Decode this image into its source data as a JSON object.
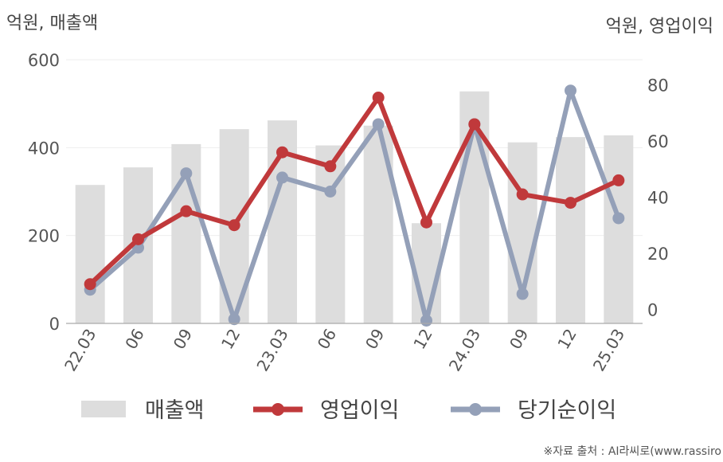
{
  "chart_data": {
    "type": "bar+line",
    "categories": [
      "22.03",
      "06",
      "09",
      "12",
      "23.03",
      "06",
      "09",
      "12",
      "24.03",
      "09",
      "12",
      "25.03"
    ],
    "left_axis": {
      "title": "억원, 매출액",
      "ticks": [
        0,
        200,
        400,
        600
      ],
      "range": [
        0,
        600
      ]
    },
    "right_axis": {
      "title": "억원, 영업이익",
      "ticks": [
        0,
        20,
        40,
        60,
        80
      ],
      "range": [
        -5,
        89
      ]
    },
    "series": [
      {
        "name": "매출액",
        "kind": "bar",
        "axis": "left",
        "color": "#dddddd",
        "values": [
          315,
          355,
          408,
          442,
          462,
          405,
          450,
          228,
          528,
          412,
          424,
          428
        ]
      },
      {
        "name": "영업이익",
        "kind": "line",
        "axis": "right",
        "color": "#c0393b",
        "values": [
          9,
          25,
          35,
          30,
          56,
          51,
          75.5,
          31,
          66,
          41,
          38,
          46
        ]
      },
      {
        "name": "당기순이익",
        "kind": "line",
        "axis": "right",
        "color": "#94a0b8",
        "values": [
          7,
          22,
          48.5,
          -3.5,
          47,
          42,
          66,
          -4,
          66,
          5.5,
          78,
          32.5
        ]
      }
    ],
    "grid": true,
    "legend_position": "bottom"
  },
  "source_note": "※자료 출처 : AI라씨로(www.rassiro"
}
